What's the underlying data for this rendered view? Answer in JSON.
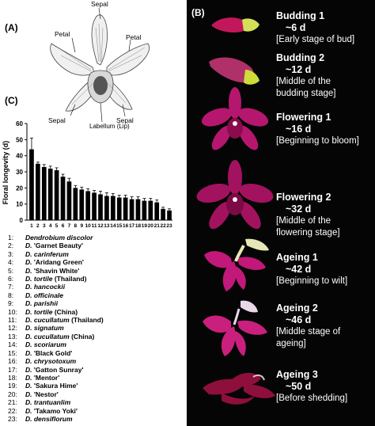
{
  "panels": {
    "a": "(A)",
    "b": "(B)",
    "c": "(C)"
  },
  "diagram": {
    "sepal_top": "Sepal",
    "petal_left": "Petal",
    "petal_right": "Petal",
    "sepal_left": "Sepal",
    "sepal_right": "Sepal",
    "labellum": "Labellum (Lip)"
  },
  "stages": [
    {
      "title": "Budding 1",
      "duration": "~6 d",
      "desc": [
        "[Early stage of bud]"
      ]
    },
    {
      "title": "Budding 2",
      "duration": "~12 d",
      "desc": [
        "[Middle of the",
        "budding stage]"
      ]
    },
    {
      "title": "Flowering 1",
      "duration": "~16 d",
      "desc": [
        "[Beginning to bloom]"
      ]
    },
    {
      "title": "Flowering 2",
      "duration": "~32 d",
      "desc": [
        "[Middle of the",
        "flowering stage]"
      ]
    },
    {
      "title": "Ageing 1",
      "duration": "~42 d",
      "desc": [
        "[Beginning to wilt]"
      ]
    },
    {
      "title": "Ageing 2",
      "duration": "~46 d",
      "desc": [
        "[Middle stage of",
        "ageing]"
      ]
    },
    {
      "title": "Ageing 3",
      "duration": "~50 d",
      "desc": [
        "[Before shedding]"
      ]
    }
  ],
  "chart_data": {
    "type": "bar",
    "ylabel": "Floral longevity (d)",
    "ylim": [
      0,
      60
    ],
    "yticks": [
      0,
      10,
      20,
      30,
      40,
      50,
      60
    ],
    "categories": [
      "1",
      "2",
      "3",
      "4",
      "5",
      "6",
      "7",
      "8",
      "9",
      "10",
      "11",
      "12",
      "13",
      "14",
      "15",
      "16",
      "17",
      "18",
      "19",
      "20",
      "21",
      "22",
      "23"
    ],
    "values": [
      44,
      35,
      33,
      32,
      31,
      27,
      24,
      20,
      19,
      18,
      17,
      16,
      15,
      15,
      14,
      14,
      13,
      13,
      12,
      12,
      11,
      7,
      6
    ],
    "errors": [
      7,
      1,
      1.5,
      1.5,
      1.5,
      1.5,
      2,
      1.5,
      1.5,
      1.5,
      1.5,
      2,
      2,
      1.5,
      1.5,
      1.5,
      1.5,
      1.5,
      1.5,
      1.5,
      1.5,
      1,
      1
    ],
    "grid": false,
    "bar_color": "#000000"
  },
  "species": [
    {
      "num": "1:",
      "name": "Dendrobium discolor",
      "suffix": ""
    },
    {
      "num": "2:",
      "name": "D.",
      "suffix": " 'Garnet Beauty'"
    },
    {
      "num": "3:",
      "name": "D. carinferum",
      "suffix": ""
    },
    {
      "num": "4:",
      "name": "D.",
      "suffix": " 'Aridang Green'"
    },
    {
      "num": "5:",
      "name": "D.",
      "suffix": " 'Shavin White'"
    },
    {
      "num": "6:",
      "name": "D. tortile",
      "suffix": " (Thailand)"
    },
    {
      "num": "7:",
      "name": "D. hancockii",
      "suffix": ""
    },
    {
      "num": "8:",
      "name": "D. officinale",
      "suffix": ""
    },
    {
      "num": "9:",
      "name": "D. parishii",
      "suffix": ""
    },
    {
      "num": "10:",
      "name": "D. tortile",
      "suffix": " (China)"
    },
    {
      "num": "11:",
      "name": "D. cucullatum",
      "suffix": " (Thailand)"
    },
    {
      "num": "12:",
      "name": "D. signatum",
      "suffix": ""
    },
    {
      "num": "13:",
      "name": "D. cucullatum",
      "suffix": " (China)"
    },
    {
      "num": "14:",
      "name": "D. scoriarum",
      "suffix": ""
    },
    {
      "num": "15:",
      "name": "D.",
      "suffix": " 'Black Gold'"
    },
    {
      "num": "16:",
      "name": "D. chrysotoxum",
      "suffix": ""
    },
    {
      "num": "17:",
      "name": "D.",
      "suffix": " 'Gatton Sunray'"
    },
    {
      "num": "18:",
      "name": "D.",
      "suffix": " 'Mentor'"
    },
    {
      "num": "19:",
      "name": "D.",
      "suffix": " 'Sakura Hime'"
    },
    {
      "num": "20:",
      "name": "D.",
      "suffix": " 'Nestor'"
    },
    {
      "num": "21:",
      "name": "D. trantuanlim",
      "suffix": ""
    },
    {
      "num": "22:",
      "name": "D.",
      "suffix": " 'Takamo Yoki'"
    },
    {
      "num": "23:",
      "name": "D. densiflorum",
      "suffix": ""
    }
  ]
}
